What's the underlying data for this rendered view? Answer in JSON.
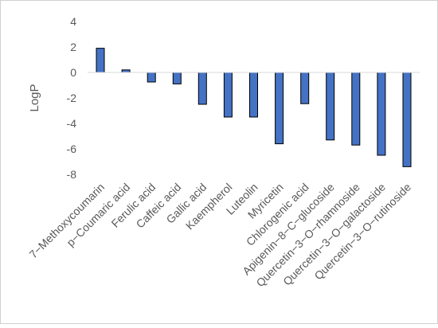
{
  "chart_data": {
    "type": "bar",
    "title": "",
    "xlabel": "",
    "ylabel": "LogP",
    "ylim": [
      -8,
      4
    ],
    "yticks": [
      4,
      2,
      0,
      -2,
      -4,
      -6,
      -8
    ],
    "grid": false,
    "legend": "none",
    "bar_color": "#4472C4",
    "bar_outline": "#000000",
    "categories": [
      "7−Methoxycoumarin",
      "p−Coumaric acid",
      "Ferulic acid",
      "Caffeic acid",
      "Gallic acid",
      "Kaempherol",
      "Luteolin",
      "Myricetin",
      "Chlorogenic acid",
      "Apigenin−8−C−glucoside",
      "Quercetin−3−O−rhamnoside",
      "Quercetin−3−O−galactoside",
      "Quercetin−3−O−rutinoside"
    ],
    "values": [
      1.9,
      0.2,
      -0.75,
      -0.9,
      -2.5,
      -3.5,
      -3.5,
      -5.6,
      -2.45,
      -5.3,
      -5.7,
      -6.5,
      -7.4
    ]
  }
}
